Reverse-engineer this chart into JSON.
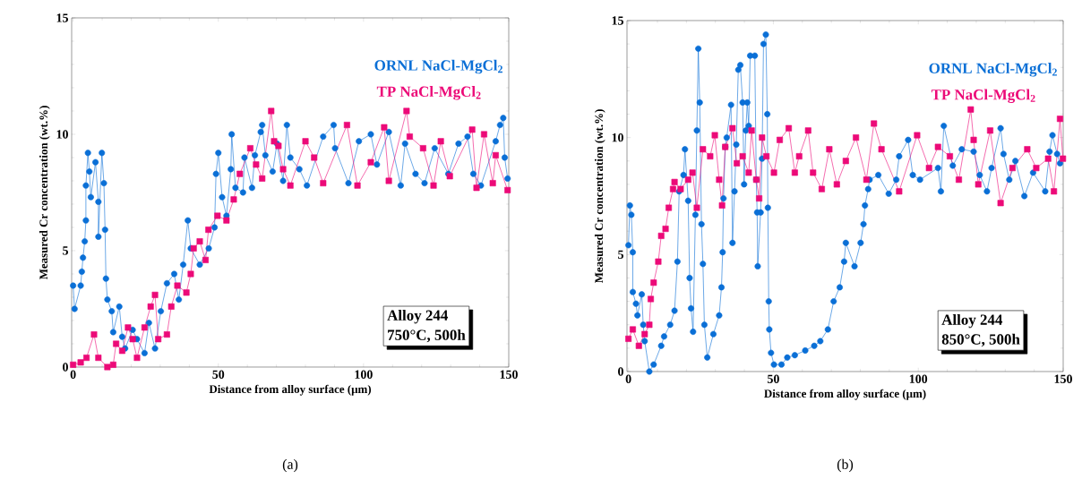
{
  "chart_data": [
    {
      "type": "line",
      "xlabel": "Distance from alloy surface (μm)",
      "ylabel": "Measured Cr concentration (wt.%)",
      "xlim": [
        -0.5,
        150
      ],
      "ylim": [
        0,
        15
      ],
      "xticks": [
        0,
        50,
        100,
        150
      ],
      "yticks": [
        0,
        5,
        10,
        15
      ],
      "line_style": "solid",
      "annotations": [
        "Alloy 244",
        "750°C, 500h",
        "(a)"
      ],
      "series": [
        {
          "name": "ORNL NaCl-MgCl$_{2}$",
          "color": "#0a6fd6",
          "marker": "circle",
          "x": [
            0,
            0.5,
            2.6,
            3,
            3.4,
            4,
            4.4,
            4.4,
            5.1,
            5.6,
            6.1,
            7.7,
            8.7,
            8.7,
            9.9,
            10.6,
            11,
            11.3,
            11.8,
            13.3,
            13.8,
            15.9,
            16.9,
            17.9,
            20.5,
            22,
            24.6,
            26.1,
            28.2,
            30.2,
            32.3,
            34.8,
            36.4,
            37.9,
            39.5,
            40.5,
            43.6,
            46.7,
            48.7,
            49.2,
            50,
            51.3,
            52.8,
            54.3,
            54.6,
            55.9,
            58.5,
            59,
            61.6,
            62.6,
            64.6,
            65.1,
            66.2,
            68.7,
            70.2,
            72.3,
            73.6,
            74.8,
            77.9,
            80.5,
            86.1,
            89.7,
            90.2,
            94.8,
            98.4,
            102.5,
            104.6,
            108.7,
            112.8,
            114.3,
            117.9,
            121,
            124.5,
            129.2,
            132.7,
            135.8,
            137.8,
            140.4,
            145.5,
            147,
            148.1,
            148.6,
            149.6
          ],
          "values": [
            3.5,
            2.5,
            3.5,
            4.1,
            4.7,
            5.4,
            6.3,
            7.8,
            9.2,
            8.4,
            7.3,
            8.8,
            7.1,
            5.6,
            9.2,
            7.9,
            5.9,
            3.8,
            2.9,
            2.4,
            1.5,
            2.6,
            1.3,
            0.8,
            1.6,
            1.2,
            0.6,
            1.9,
            0.8,
            2.4,
            3.6,
            4.0,
            2.9,
            4.4,
            6.3,
            5.1,
            4.4,
            5.1,
            6.0,
            8.3,
            9.2,
            7.3,
            6.5,
            8.5,
            10.0,
            7.7,
            7.5,
            9.0,
            7.7,
            9.1,
            10.1,
            10.4,
            9.1,
            8.4,
            9.6,
            8.0,
            10.4,
            9.0,
            8.5,
            7.8,
            9.9,
            10.4,
            9.4,
            7.9,
            9.7,
            10.0,
            8.7,
            10.1,
            7.8,
            9.6,
            8.3,
            7.9,
            9.4,
            8.3,
            9.6,
            9.9,
            8.3,
            7.8,
            9.7,
            10.4,
            10.7,
            9.0,
            8.1
          ]
        },
        {
          "name": "TP NaCl-MgCl$_{2}$",
          "color": "#ec0a78",
          "marker": "square",
          "x": [
            0,
            2.6,
            4.6,
            7.2,
            8.7,
            11.8,
            13.8,
            14.8,
            16.9,
            18.9,
            20.5,
            22,
            24.6,
            26.7,
            28.2,
            29.3,
            32.3,
            33.8,
            35.9,
            39,
            40.5,
            41.5,
            43.6,
            45.6,
            46.6,
            49.7,
            52.8,
            55.3,
            57.4,
            61,
            63,
            65.1,
            68.2,
            69.2,
            70.7,
            72.3,
            74.8,
            80,
            83,
            86.1,
            94.3,
            97.9,
            102.5,
            107.1,
            108.7,
            114.8,
            115.9,
            120.5,
            124.1,
            126.6,
            129.7,
            137.4,
            138.9,
            141.5,
            144.5,
            145.5,
            149.6
          ],
          "values": [
            0.1,
            0.2,
            0.4,
            1.4,
            0.4,
            0,
            0.1,
            1.0,
            0.7,
            1.7,
            1.2,
            0.4,
            1.7,
            2.6,
            3.1,
            1.2,
            1.4,
            2.6,
            3.5,
            3.2,
            4.0,
            5.1,
            5.4,
            4.6,
            5.9,
            6.5,
            6.3,
            7.2,
            8.3,
            9.4,
            8.7,
            8.1,
            11.0,
            9.7,
            9.5,
            8.5,
            7.8,
            9.7,
            9.0,
            7.9,
            10.4,
            7.8,
            8.8,
            10.3,
            8.0,
            11.0,
            9.9,
            9.4,
            7.8,
            9.7,
            8.2,
            10.2,
            7.7,
            10.0,
            7.9,
            9.1,
            7.6
          ]
        }
      ]
    },
    {
      "type": "line",
      "xlabel": "Distance from alloy surface (μm)",
      "ylabel": "Measured Cr concentration (wt.%)",
      "xlim": [
        -0.5,
        150
      ],
      "ylim": [
        0,
        15
      ],
      "xticks": [
        0,
        50,
        100,
        150
      ],
      "yticks": [
        0,
        5,
        10,
        15
      ],
      "line_style": "solid",
      "annotations": [
        "Alloy 244",
        "850°C, 500h",
        "(b)"
      ],
      "series": [
        {
          "name": "ORNL NaCl-MgCl$_{2}$",
          "color": "#0a6fd6",
          "marker": "circle",
          "x": [
            0,
            0.5,
            1,
            1.5,
            1.5,
            2.6,
            3.1,
            4.6,
            5.1,
            5.6,
            7.2,
            8.7,
            11.3,
            12.3,
            14.4,
            15.9,
            16.9,
            17.5,
            19,
            19.5,
            20.6,
            21.1,
            21.6,
            22.3,
            23.1,
            23.6,
            24.1,
            24.6,
            25.2,
            25.7,
            26.2,
            27.2,
            29.3,
            31.3,
            32.1,
            32.5,
            32.8,
            33.4,
            33.9,
            35.4,
            35.9,
            36.6,
            37.2,
            37.9,
            38.6,
            39.4,
            39.9,
            40.5,
            41,
            41.5,
            42,
            43.6,
            44.1,
            44.4,
            44.6,
            45.6,
            46.1,
            46.6,
            47.4,
            47.9,
            48.1,
            48.4,
            48.6,
            49.2,
            50.2,
            52.8,
            54.8,
            57.4,
            61,
            64.1,
            66.2,
            68.8,
            70.8,
            72.9,
            74.4,
            75,
            78,
            80.1,
            81.1,
            81.6,
            82.7,
            83.2,
            86.2,
            89.8,
            92.4,
            93.4,
            96.5,
            98.1,
            100.6,
            106.8,
            107.8,
            108.8,
            111.9,
            115,
            119.1,
            121.2,
            123.7,
            125.3,
            128.4,
            129.4,
            131.4,
            133.5,
            136.6,
            139.6,
            143.8,
            145.3,
            146.3,
            147.9,
            148.9
          ],
          "values": [
            5.4,
            7.1,
            6.7,
            5.1,
            3.4,
            2.9,
            2.4,
            3.3,
            2.0,
            1.3,
            0,
            0.3,
            1.1,
            1.5,
            2.0,
            2.6,
            4.7,
            7.7,
            8.4,
            9.5,
            7.3,
            4.0,
            2.7,
            1.7,
            6.7,
            10.3,
            13.8,
            11.5,
            6.3,
            4.6,
            2.0,
            0.6,
            1.6,
            2.4,
            3.6,
            5.1,
            7.4,
            9.6,
            10.0,
            11.4,
            5.5,
            7.7,
            9.7,
            12.9,
            13.1,
            11.5,
            8.0,
            10.3,
            11.5,
            10.5,
            13.5,
            13.5,
            8.2,
            6.8,
            4.5,
            6.8,
            9.1,
            14.0,
            14.4,
            11.0,
            7.0,
            3.0,
            1.8,
            0.8,
            0.3,
            0.3,
            0.6,
            0.7,
            0.9,
            1.1,
            1.3,
            1.8,
            3.0,
            3.6,
            4.7,
            5.5,
            4.5,
            5.5,
            6.3,
            7.1,
            7.8,
            8.2,
            8.4,
            7.6,
            8.2,
            9.2,
            9.9,
            8.4,
            8.2,
            8.7,
            7.7,
            10.5,
            8.8,
            9.5,
            9.4,
            8.4,
            7.7,
            8.7,
            10.4,
            9.3,
            8.2,
            9.0,
            7.5,
            8.5,
            7.7,
            9.4,
            10.1,
            9.3,
            8.9
          ]
        },
        {
          "name": "TP NaCl-MgCl$_{2}$",
          "color": "#ec0a78",
          "marker": "square",
          "x": [
            0,
            1.5,
            3.6,
            5.6,
            7.2,
            7.7,
            8.7,
            10.3,
            11.3,
            12.8,
            13.9,
            15.4,
            15.9,
            18,
            20.6,
            22.1,
            23.6,
            25.7,
            28.2,
            29.8,
            31.3,
            32.3,
            33.4,
            35.9,
            37.4,
            39.4,
            41.5,
            42.5,
            44.1,
            45.1,
            46.1,
            47.6,
            50.2,
            52.2,
            55.3,
            57.4,
            58.9,
            62,
            63.7,
            66.7,
            69.3,
            71.9,
            75,
            78.5,
            82.1,
            84.7,
            87.3,
            93.4,
            99.6,
            103.7,
            106.8,
            110.9,
            114,
            118.1,
            119.1,
            120.7,
            124.8,
            128.4,
            132.5,
            137.6,
            140.7,
            144.8,
            146.8,
            148.9,
            149.9
          ],
          "values": [
            1.4,
            1.8,
            1.1,
            1.6,
            2.0,
            3.1,
            3.8,
            4.7,
            5.8,
            6.1,
            7.0,
            7.8,
            8.1,
            7.8,
            8.2,
            8.5,
            7.0,
            9.5,
            9.2,
            10.1,
            8.2,
            7.1,
            9.6,
            10.4,
            8.9,
            9.2,
            8.5,
            10.3,
            8.2,
            7.4,
            10.0,
            9.2,
            8.5,
            9.9,
            10.4,
            8.5,
            9.2,
            10.3,
            8.5,
            7.8,
            9.5,
            8.0,
            9.0,
            10.0,
            8.2,
            10.6,
            9.5,
            7.7,
            10.1,
            8.7,
            9.6,
            9.2,
            8.2,
            11.2,
            9.9,
            8.0,
            10.3,
            7.2,
            8.7,
            9.5,
            8.7,
            9.1,
            7.7,
            10.8,
            9.1
          ]
        }
      ]
    }
  ]
}
